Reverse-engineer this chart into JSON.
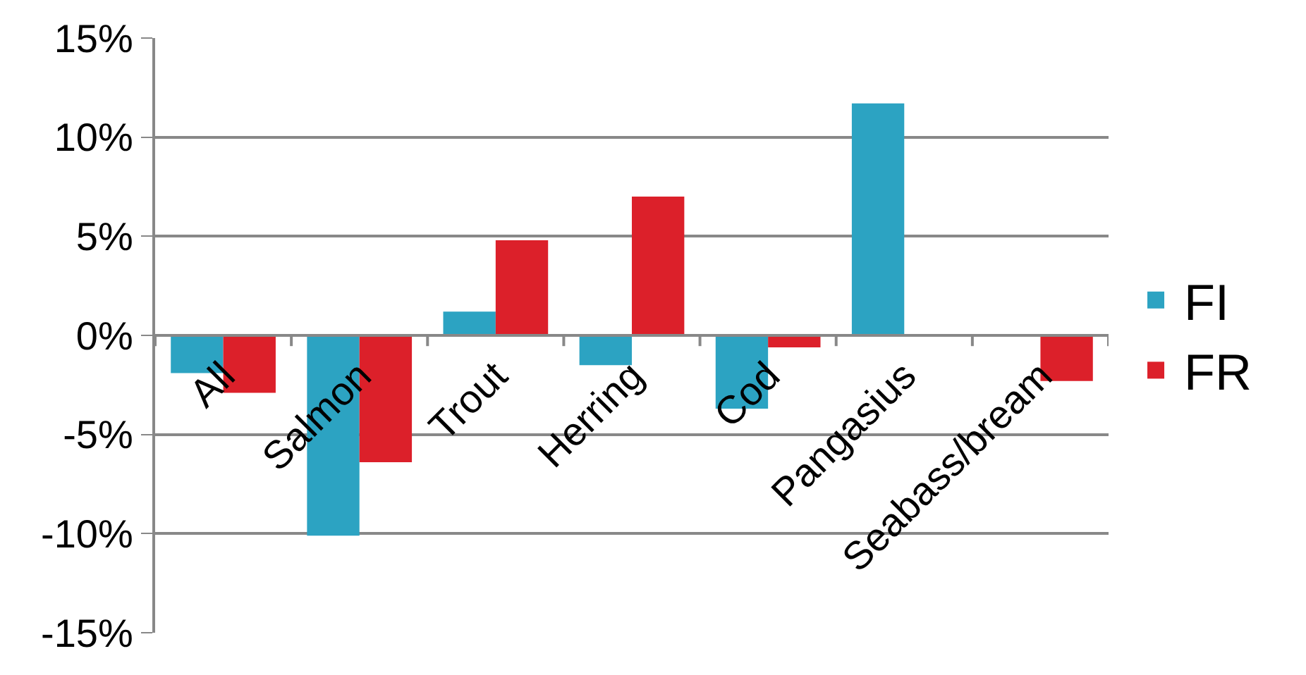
{
  "chart_data": {
    "type": "bar",
    "categories": [
      "All",
      "Salmon",
      "Trout",
      "Herring",
      "Cod",
      "Pangasius",
      "Seabass/bream"
    ],
    "series": [
      {
        "name": "FI",
        "color": "#2ca3c2",
        "values": [
          -1.9,
          -10.1,
          1.2,
          -1.5,
          -3.7,
          11.7,
          null
        ]
      },
      {
        "name": "FR",
        "color": "#dc202a",
        "values": [
          -2.9,
          -6.4,
          4.8,
          7.0,
          -0.6,
          null,
          -2.3
        ]
      }
    ],
    "ylim": [
      -15,
      15
    ],
    "yticks": [
      {
        "value": -15,
        "label": "-15%"
      },
      {
        "value": -10,
        "label": "-10%"
      },
      {
        "value": -5,
        "label": "-5%"
      },
      {
        "value": 0,
        "label": "0%"
      },
      {
        "value": 5,
        "label": "5%"
      },
      {
        "value": 10,
        "label": "10%"
      },
      {
        "value": 15,
        "label": "15%"
      }
    ],
    "grid": "y",
    "legend": "right"
  }
}
